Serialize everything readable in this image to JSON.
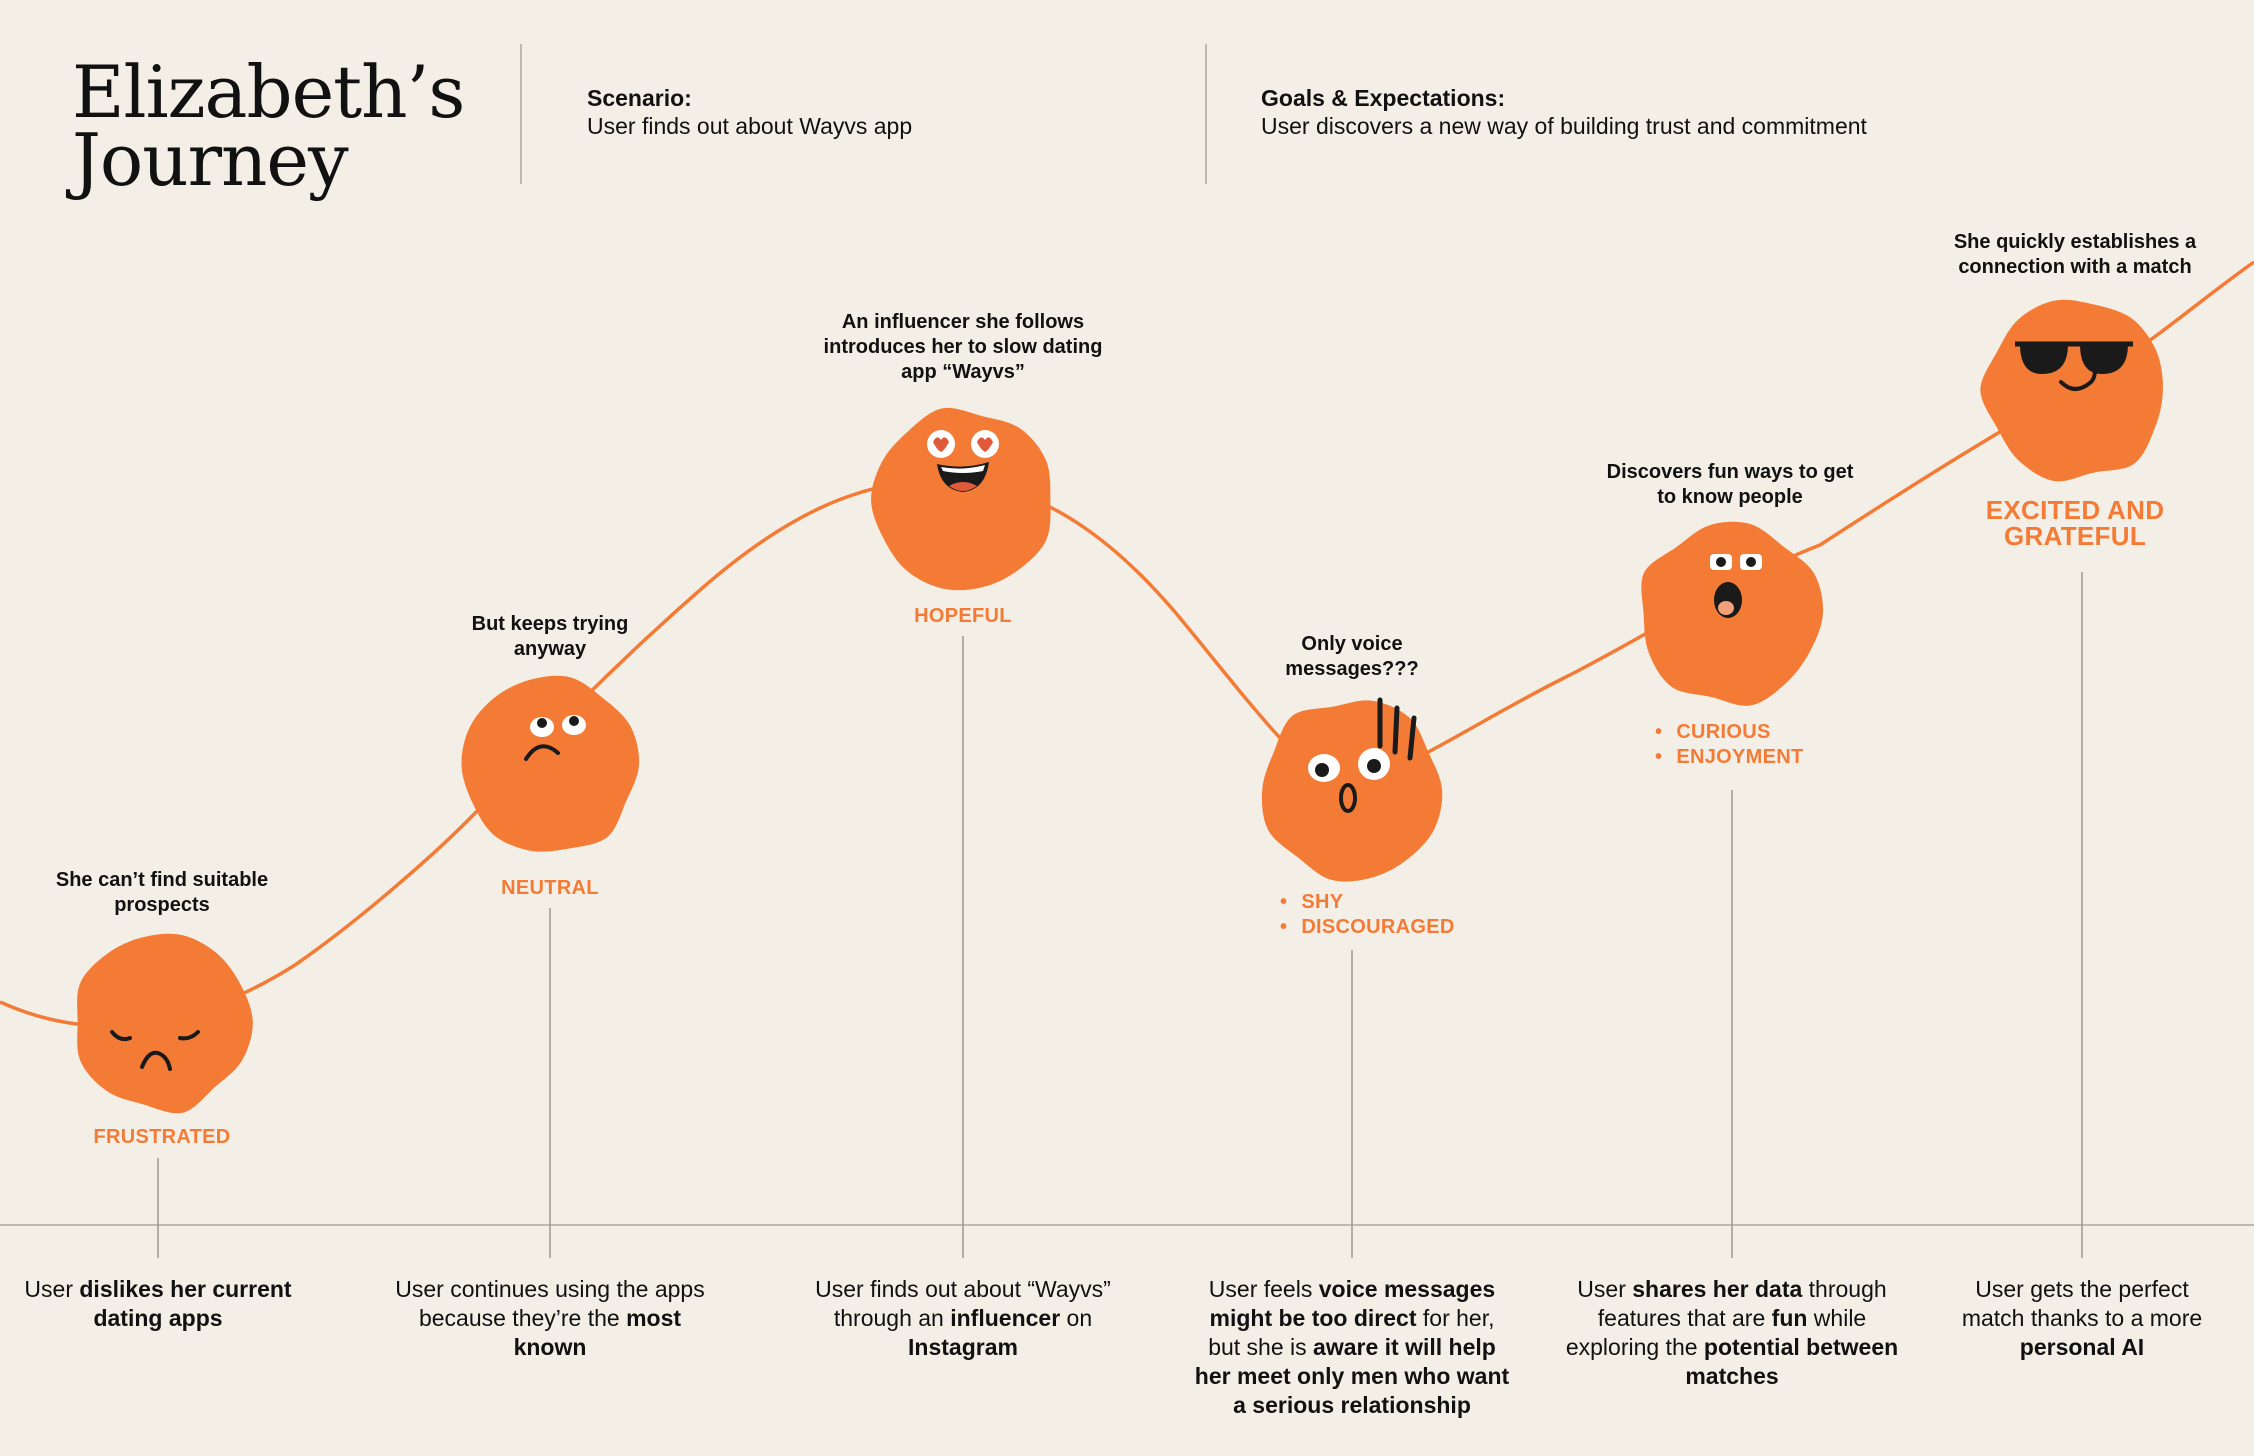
{
  "header": {
    "title_line1": "Elizabeth’s",
    "title_line2": "Journey",
    "scenario_label": "Scenario:",
    "scenario_text": "User finds out about Wayvs app",
    "goals_label": "Goals & Expectations:",
    "goals_text": "User discovers a new way of building trust and commitment"
  },
  "colors": {
    "accent": "#f47b35",
    "background": "#f4efe6",
    "line": "#bdb8b0"
  },
  "stages": [
    {
      "face": "frustrated-face-icon",
      "description": "She can’t find suitable prospects",
      "emotions": [
        "FRUSTRATED"
      ],
      "caption": [
        {
          "t": "User "
        },
        {
          "t": "dislikes her current dating apps",
          "b": true
        }
      ]
    },
    {
      "face": "neutral-face-icon",
      "description": "But keeps trying anyway",
      "emotions": [
        "NEUTRAL"
      ],
      "caption": [
        {
          "t": "User continues using the apps because they’re the "
        },
        {
          "t": "most known",
          "b": true
        }
      ]
    },
    {
      "face": "hopeful-face-icon",
      "description": "An influencer she follows introduces her to slow dating app “Wayvs”",
      "emotions": [
        "HOPEFUL"
      ],
      "caption": [
        {
          "t": "User finds out about “Wayvs” through an "
        },
        {
          "t": "influencer",
          "b": true
        },
        {
          "t": " on "
        },
        {
          "t": "Instagram",
          "b": true
        }
      ]
    },
    {
      "face": "shy-face-icon",
      "description": "Only voice messages???",
      "emotions": [
        "SHY",
        "DISCOURAGED"
      ],
      "caption": [
        {
          "t": "User feels "
        },
        {
          "t": "voice messages might be too direct",
          "b": true
        },
        {
          "t": " for her, but she is "
        },
        {
          "t": "aware it will help her meet only men who want a serious relationship",
          "b": true
        }
      ]
    },
    {
      "face": "curious-face-icon",
      "description": "Discovers fun ways to get to know people",
      "emotions": [
        "CURIOUS",
        "ENJOYMENT"
      ],
      "caption": [
        {
          "t": "User "
        },
        {
          "t": "shares her data",
          "b": true
        },
        {
          "t": " through features that are "
        },
        {
          "t": "fun",
          "b": true
        },
        {
          "t": " while exploring the "
        },
        {
          "t": "potential between matches",
          "b": true
        }
      ]
    },
    {
      "face": "excited-face-icon",
      "description": "She quickly establishes a connection with a match",
      "emotions": [
        "EXCITED AND GRATEFUL"
      ],
      "caption": [
        {
          "t": "User gets the perfect match thanks to a more "
        },
        {
          "t": "personal AI",
          "b": true
        }
      ]
    }
  ]
}
